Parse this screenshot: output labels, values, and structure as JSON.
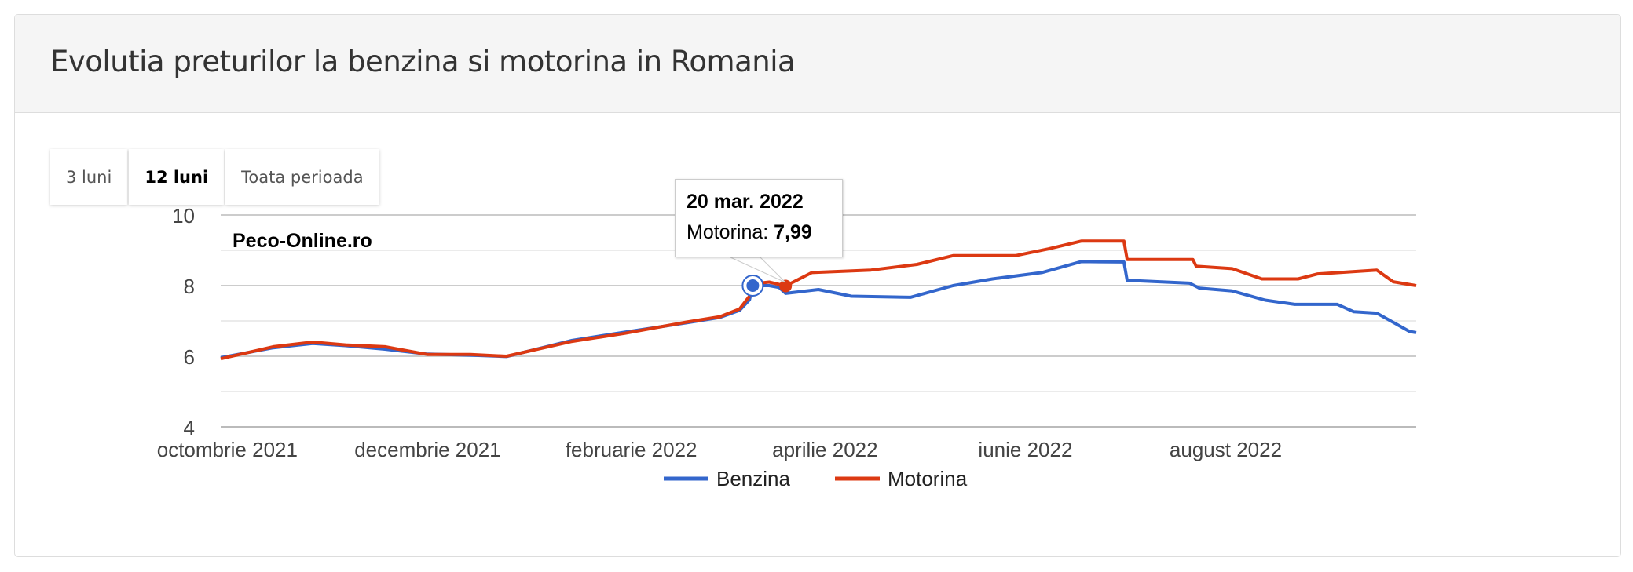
{
  "header": {
    "title": "Evolutia preturilor la benzina si motorina in Romania"
  },
  "range_buttons": [
    {
      "label": "3 luni",
      "active": false
    },
    {
      "label": "12 luni",
      "active": true
    },
    {
      "label": "Toata perioada",
      "active": false
    }
  ],
  "tooltip": {
    "date": "20 mar. 2022",
    "series_label": "Motorina:",
    "value": "7,99"
  },
  "colors": {
    "benzina": "#3366cc",
    "motorina": "#dc3912",
    "grid": "#cccccc"
  },
  "chart_data": {
    "type": "line",
    "title": "Evolutia preturilor la benzina si motorina in Romania",
    "watermark": "Peco-Online.ro",
    "x_unit": "days since 1 Oct 2021",
    "xlim": [
      -2,
      362
    ],
    "ylim": [
      4,
      10
    ],
    "y_ticks": [
      "4",
      "6",
      "8",
      "10"
    ],
    "y_tick_values": [
      4,
      6,
      8,
      10
    ],
    "y_minor_gridlines": [
      5,
      7,
      9
    ],
    "x_ticks": [
      {
        "label": "octombrie 2021",
        "day": 0
      },
      {
        "label": "decembrie 2021",
        "day": 61
      },
      {
        "label": "februarie 2022",
        "day": 123
      },
      {
        "label": "aprilie 2022",
        "day": 182
      },
      {
        "label": "iunie 2022",
        "day": 243
      },
      {
        "label": "august 2022",
        "day": 304
      }
    ],
    "legend_position": "bottom",
    "series": [
      {
        "name": "Benzina",
        "color": "#3366cc",
        "x": [
          -2,
          14,
          26,
          36,
          48,
          61,
          74,
          85,
          105,
          121,
          140,
          150,
          156,
          159,
          160,
          165,
          168,
          170,
          180,
          190,
          208,
          221,
          233,
          248,
          260,
          273,
          274,
          293,
          296,
          306,
          316,
          325,
          338,
          343,
          350,
          360,
          362
        ],
        "y": [
          5.96,
          6.24,
          6.36,
          6.3,
          6.2,
          6.06,
          6.03,
          5.99,
          6.45,
          6.68,
          6.95,
          7.1,
          7.3,
          7.6,
          8.0,
          8.0,
          7.95,
          7.78,
          7.89,
          7.7,
          7.67,
          8.0,
          8.19,
          8.37,
          8.68,
          8.67,
          8.15,
          8.07,
          7.93,
          7.85,
          7.59,
          7.47,
          7.47,
          7.26,
          7.22,
          6.7,
          6.67
        ]
      },
      {
        "name": "Motorina",
        "color": "#dc3912",
        "x": [
          -2,
          14,
          26,
          36,
          48,
          61,
          74,
          85,
          105,
          121,
          140,
          150,
          156,
          159,
          160,
          165,
          170,
          178,
          196,
          210,
          221,
          240,
          250,
          260,
          273,
          274,
          294,
          295,
          306,
          315,
          326,
          332,
          350,
          355,
          362
        ],
        "y": [
          5.93,
          6.27,
          6.4,
          6.32,
          6.27,
          6.05,
          6.05,
          6.0,
          6.42,
          6.65,
          6.97,
          7.12,
          7.34,
          7.7,
          8.05,
          8.1,
          7.99,
          8.37,
          8.44,
          8.6,
          8.85,
          8.85,
          9.04,
          9.26,
          9.26,
          8.74,
          8.74,
          8.55,
          8.48,
          8.19,
          8.19,
          8.33,
          8.44,
          8.11,
          8.0
        ]
      }
    ],
    "highlight": [
      {
        "series": "Benzina",
        "day": 160,
        "value": 8.0
      },
      {
        "series": "Motorina",
        "day": 170,
        "value": 7.99
      }
    ]
  }
}
